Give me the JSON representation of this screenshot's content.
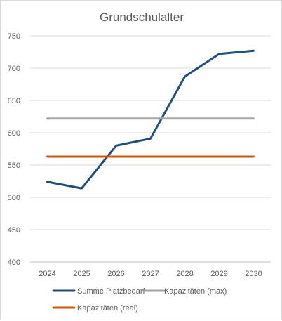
{
  "chart_data": {
    "type": "line",
    "title": "Grundschulalter",
    "xlabel": "",
    "ylabel": "",
    "x": [
      "2024",
      "2025",
      "2026",
      "2027",
      "2028",
      "2029",
      "2030"
    ],
    "ylim": [
      400,
      750
    ],
    "yticks": [
      400,
      450,
      500,
      550,
      600,
      650,
      700,
      750
    ],
    "grid": true,
    "legend_position": "bottom",
    "series": [
      {
        "name": "Summe Platzbedarf",
        "color": "#1f4e79",
        "values": [
          524,
          514,
          580,
          591,
          687,
          722,
          727
        ]
      },
      {
        "name": "Kapazitäten (max)",
        "color": "#a5a5a5",
        "values": [
          622,
          622,
          622,
          622,
          622,
          622,
          622
        ]
      },
      {
        "name": "Kapazitäten (real)",
        "color": "#c55a11",
        "values": [
          563,
          563,
          563,
          563,
          563,
          563,
          563
        ]
      }
    ]
  }
}
